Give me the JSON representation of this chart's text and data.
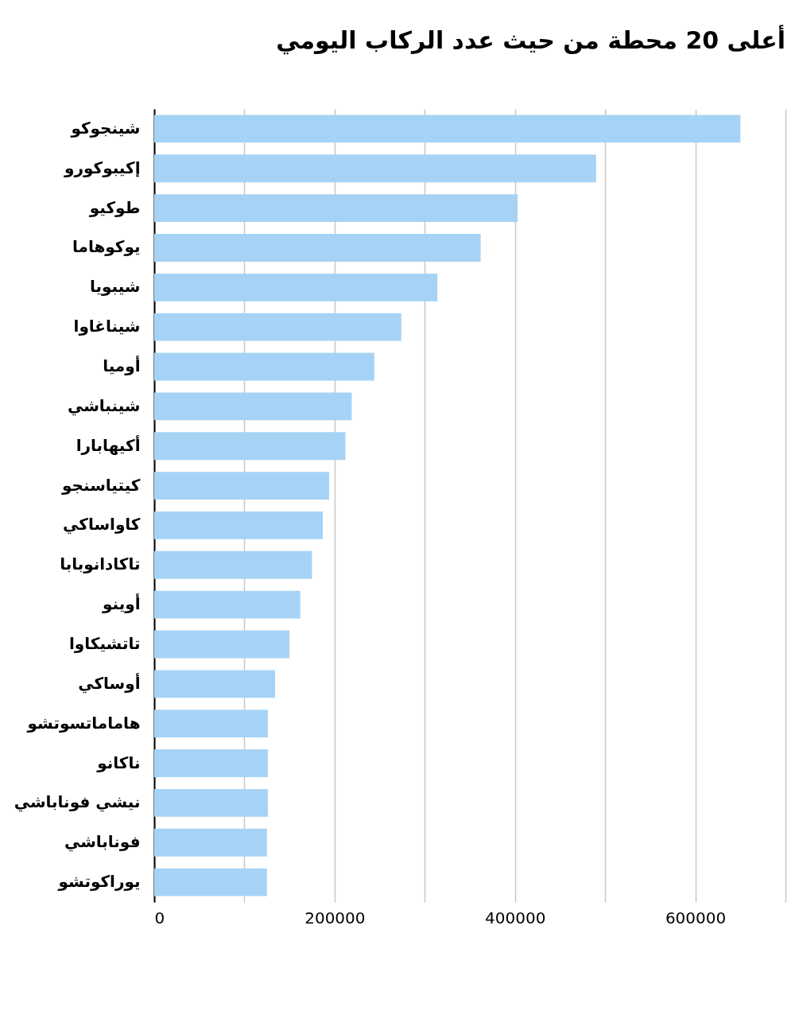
{
  "chart_data": {
    "type": "bar",
    "orientation": "horizontal",
    "title": "أعلى 20 محطة من حيث عدد الركاب اليومي",
    "categories": [
      "شينجوكو",
      "إكيبوكورو",
      "طوكيو",
      "يوكوهاما",
      "شيبويا",
      "شيناغاوا",
      "أوميا",
      "شينباشي",
      "أكيهابارا",
      "كيتياسنجو",
      "كاواساكي",
      "تاكادانوبابا",
      "أوينو",
      "تاتشيكاوا",
      "أوساكي",
      "هاماماتسوتشو",
      "ناكانو",
      "نيشي فوناباشي",
      "فوناباشي",
      "يوراكوتشو"
    ],
    "values": [
      650000,
      490000,
      403000,
      362000,
      314000,
      274000,
      244000,
      219000,
      212000,
      194000,
      187000,
      175000,
      162000,
      150000,
      134000,
      126000,
      126000,
      126000,
      125000,
      125000
    ],
    "color": "#a6d3f5",
    "xlim": [
      0,
      700000
    ],
    "xticks": [
      0,
      {
        "value": 100000,
        "label": null
      },
      200000,
      {
        "value": 300000,
        "label": null
      },
      400000,
      {
        "value": 500000,
        "label": null
      },
      600000,
      {
        "value": 700000,
        "label": null
      }
    ],
    "grid": "x"
  }
}
